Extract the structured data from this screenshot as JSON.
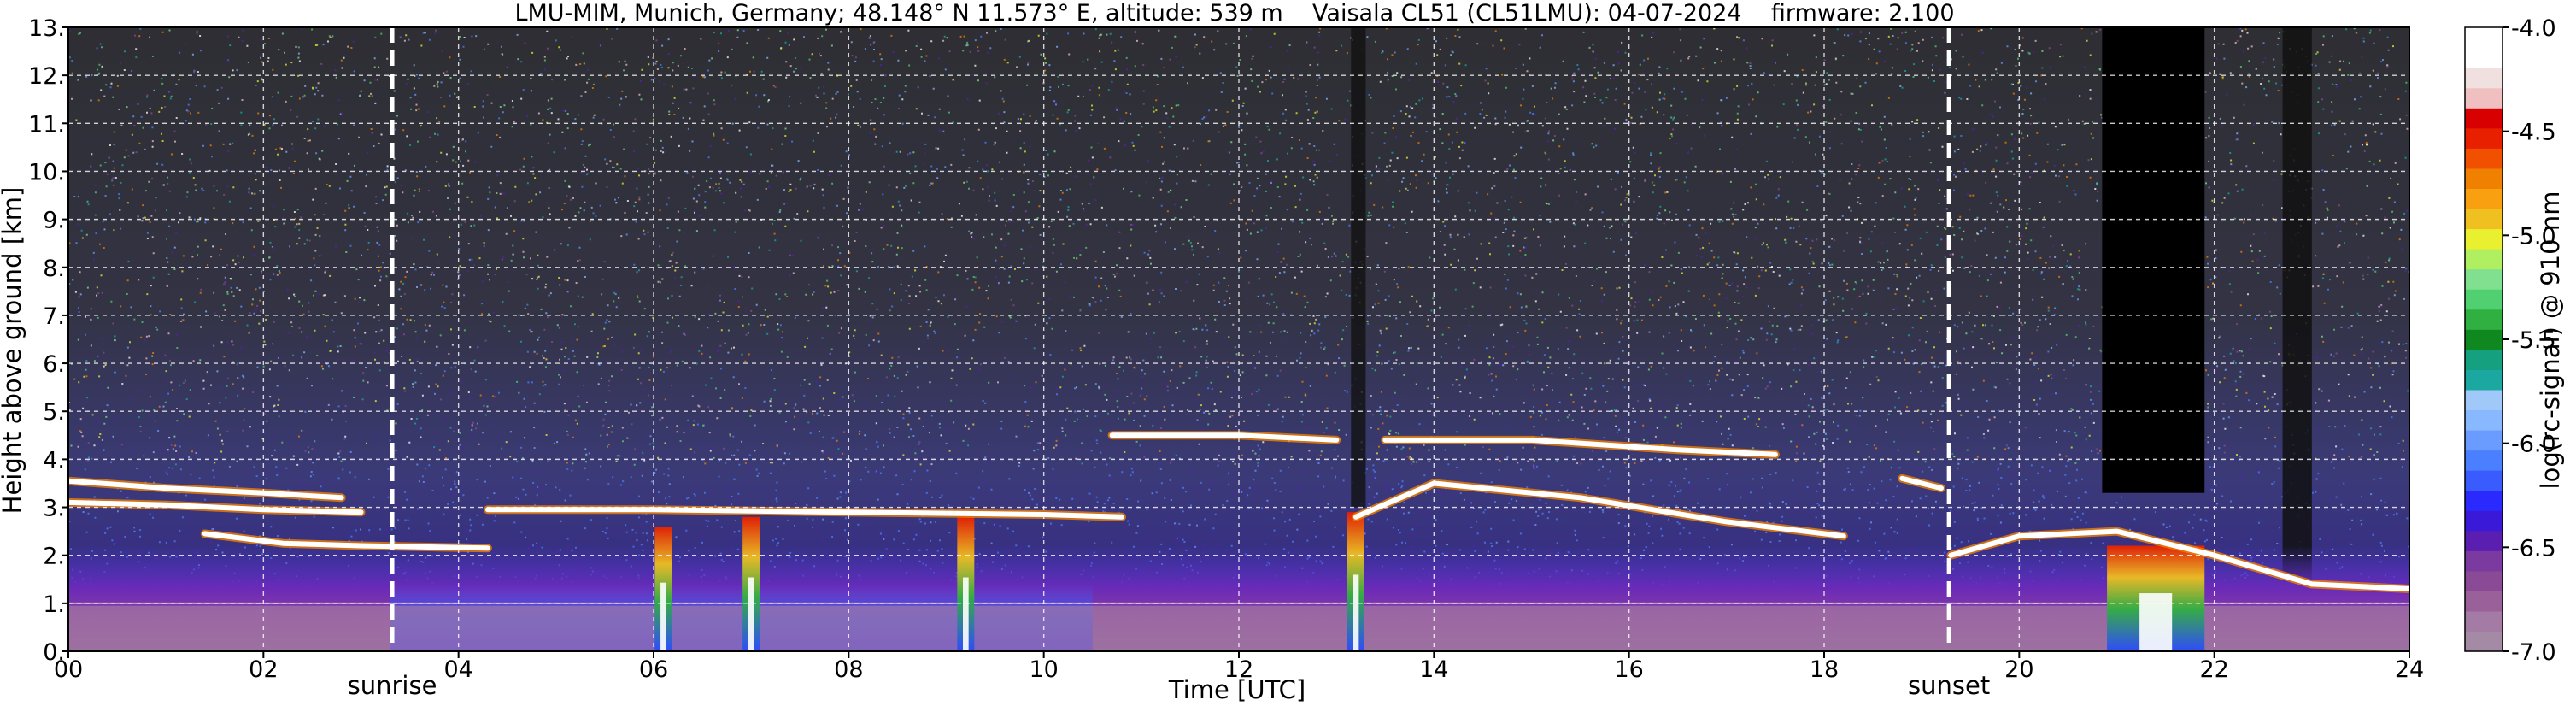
{
  "chart_data": {
    "type": "heatmap",
    "title": "LMU-MIM, Munich, Germany; 48.148° N 11.573° E, altitude: 539 m    Vaisala CL51 (CL51LMU): 04-07-2024    firmware: 2.100",
    "xlabel": "Time [UTC]",
    "ylabel": "Height above ground [km]",
    "xlim": [
      0,
      24
    ],
    "ylim": [
      0,
      13
    ],
    "x_ticks": [
      "00",
      "02",
      "04",
      "06",
      "08",
      "10",
      "12",
      "14",
      "16",
      "18",
      "20",
      "22",
      "24"
    ],
    "x_tick_values": [
      0,
      2,
      4,
      6,
      8,
      10,
      12,
      14,
      16,
      18,
      20,
      22,
      24
    ],
    "y_ticks": [
      "0.",
      "1.",
      "2.",
      "3.",
      "4.",
      "5.",
      "6.",
      "7.",
      "8.",
      "9.",
      "10.",
      "11.",
      "12.",
      "13."
    ],
    "y_tick_values": [
      0,
      1,
      2,
      3,
      4,
      5,
      6,
      7,
      8,
      9,
      10,
      11,
      12,
      13
    ],
    "grid": true,
    "colorbar": {
      "label": "log(rc-signal) @ 910 nm",
      "range": [
        -7.0,
        -4.0
      ],
      "ticks": [
        "-4.0",
        "-4.5",
        "-5.0",
        "-5.5",
        "-6.0",
        "-6.5",
        "-7.0"
      ],
      "tick_values": [
        -4.0,
        -4.5,
        -5.0,
        -5.5,
        -6.0,
        -6.5,
        -7.0
      ],
      "colors": [
        "#a48aa4",
        "#a47ba4",
        "#9a609a",
        "#8b4a96",
        "#7a3aa0",
        "#5a1fb0",
        "#3a1ad8",
        "#2a2aff",
        "#3a5cff",
        "#4a80ff",
        "#6a9cff",
        "#88b8ff",
        "#a0c8f8",
        "#1aa8a0",
        "#15a080",
        "#108820",
        "#30b040",
        "#50d070",
        "#80e090",
        "#b0f060",
        "#e8f030",
        "#f0c020",
        "#f8a010",
        "#f08000",
        "#f05000",
        "#e82000",
        "#d80000",
        "#f0c0c0",
        "#f0e0e0",
        "#ffffff",
        "#ffffff"
      ]
    },
    "markers": [
      {
        "label": "sunrise",
        "x": 3.32
      },
      {
        "label": "sunset",
        "x": 19.28
      }
    ],
    "cloud_layers": [
      {
        "x": [
          0.0,
          1.0,
          2.0,
          2.8
        ],
        "y": [
          3.55,
          3.4,
          3.3,
          3.2
        ]
      },
      {
        "x": [
          0.0,
          1.0,
          2.0,
          3.0
        ],
        "y": [
          3.1,
          3.05,
          2.95,
          2.9
        ]
      },
      {
        "x": [
          1.4,
          2.2,
          3.0,
          4.3
        ],
        "y": [
          2.45,
          2.25,
          2.2,
          2.15
        ]
      },
      {
        "x": [
          4.3,
          6.0,
          8.0,
          10.0,
          10.8
        ],
        "y": [
          2.95,
          2.95,
          2.9,
          2.85,
          2.8
        ]
      },
      {
        "x": [
          10.7,
          12.0,
          13.0
        ],
        "y": [
          4.5,
          4.5,
          4.4
        ]
      },
      {
        "x": [
          13.5,
          15.0,
          16.5,
          17.5
        ],
        "y": [
          4.4,
          4.4,
          4.2,
          4.1
        ]
      },
      {
        "x": [
          13.2,
          14.0,
          15.5,
          17.0,
          18.2
        ],
        "y": [
          2.8,
          3.5,
          3.2,
          2.7,
          2.4
        ]
      },
      {
        "x": [
          18.8,
          19.2
        ],
        "y": [
          3.6,
          3.4
        ]
      },
      {
        "x": [
          19.3,
          20.0,
          21.0,
          22.0,
          23.0,
          24.0
        ],
        "y": [
          2.0,
          2.4,
          2.5,
          2.0,
          1.4,
          1.3
        ]
      }
    ],
    "rain_columns": [
      {
        "x": 6.1,
        "y_top": 2.6
      },
      {
        "x": 7.0,
        "y_top": 2.8
      },
      {
        "x": 9.2,
        "y_top": 2.8
      },
      {
        "x": 13.2,
        "y_top": 2.9
      },
      {
        "x": 21.4,
        "y_top": 2.2
      }
    ],
    "noise_free_interval": {
      "x": [
        20.85,
        21.9
      ],
      "y_from": 3.3
    }
  }
}
